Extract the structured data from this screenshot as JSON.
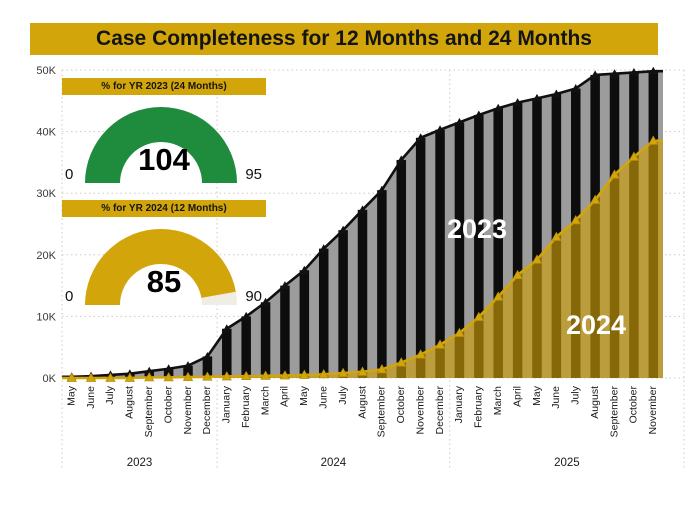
{
  "title": "Case Completeness for 12 Months and 24 Months",
  "colors": {
    "gold": "#D2A60B",
    "green": "#1E8B3D",
    "gray_fill": "#9C9C9C",
    "black": "#101010",
    "grid": "#c9c9c9",
    "gauge_unfilled": "#f0ede5"
  },
  "gauges": [
    {
      "header": "% for YR 2023 (24 Months)",
      "value": 104,
      "value_label": "104",
      "min": 0,
      "min_label": "0",
      "max": 95,
      "max_label": "95",
      "color": "#1E8B3D"
    },
    {
      "header": "% for YR 2024 (12 Months)",
      "value": 85,
      "value_label": "85",
      "min": 0,
      "min_label": "0",
      "max": 90,
      "max_label": "90",
      "color": "#D2A60B"
    }
  ],
  "chart_data": {
    "type": "area",
    "title": "Case Completeness for 12 Months and 24 Months",
    "ylim": [
      0,
      50000
    ],
    "yticks": [
      "0K",
      "10K",
      "20K",
      "30K",
      "40K",
      "50K"
    ],
    "grid": "dotted-horizontal",
    "legend_position": "labels-on-area",
    "categories": [
      {
        "year": "2023",
        "months": [
          "May",
          "June",
          "July",
          "August",
          "September",
          "October",
          "November",
          "December"
        ]
      },
      {
        "year": "2024",
        "months": [
          "January",
          "February",
          "March",
          "April",
          "May",
          "June",
          "July",
          "August",
          "September",
          "October",
          "November",
          "December"
        ]
      },
      {
        "year": "2025",
        "months": [
          "January",
          "February",
          "March",
          "April",
          "May",
          "June",
          "July",
          "August",
          "September",
          "October",
          "November"
        ]
      }
    ],
    "series": [
      {
        "name": "2023",
        "marker": "triangle",
        "line_color": "#101010",
        "fill_color": "#9C9C9C",
        "bar_color": "#0d0d0d",
        "label_color": "#ffffff",
        "values": [
          200,
          300,
          500,
          700,
          1100,
          1500,
          2000,
          3500,
          8000,
          10000,
          12300,
          15000,
          17500,
          21000,
          24000,
          27300,
          30500,
          35400,
          39000,
          40300,
          41500,
          42700,
          43800,
          44700,
          45400,
          46100,
          47000,
          49200,
          49400,
          49600,
          49800
        ]
      },
      {
        "name": "2024",
        "marker": "triangle",
        "line_color": "#D2A60B",
        "fill_color": "rgba(206,158,6,0.63)",
        "label_color": "#ffffff",
        "values": [
          0,
          0,
          0,
          0,
          100,
          100,
          150,
          200,
          250,
          300,
          350,
          400,
          500,
          600,
          800,
          1000,
          1400,
          2500,
          3800,
          5400,
          7300,
          9900,
          13200,
          16700,
          19200,
          22900,
          25600,
          28900,
          33000,
          35900,
          38500
        ]
      }
    ]
  }
}
